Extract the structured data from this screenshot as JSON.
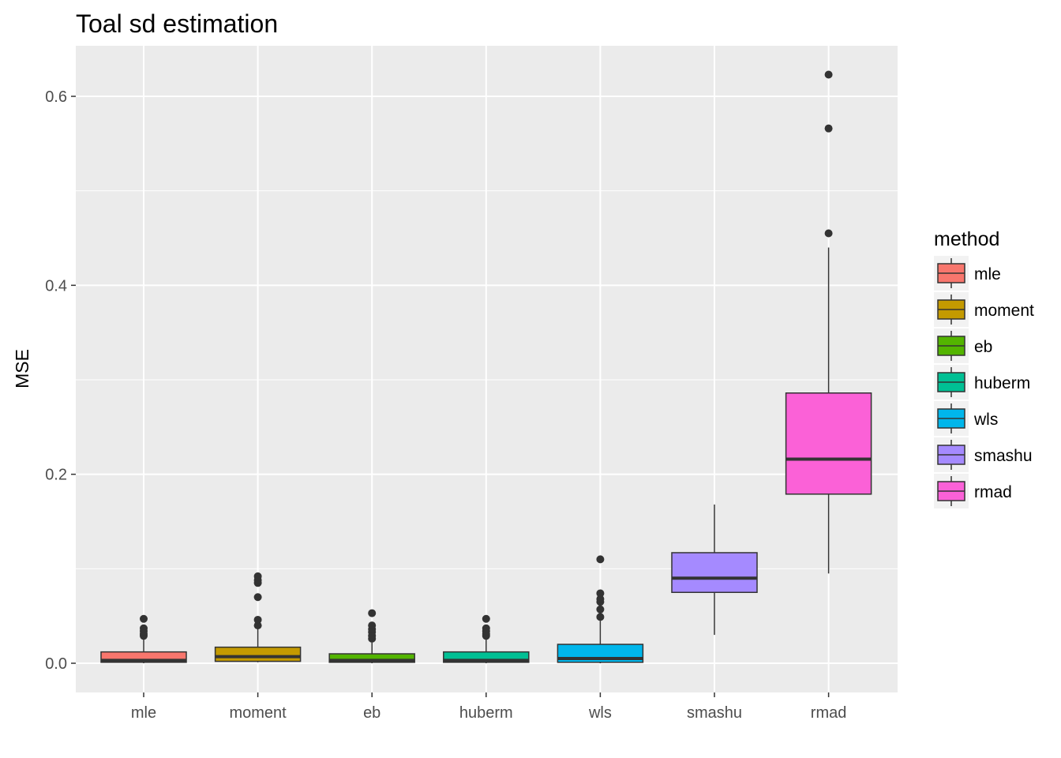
{
  "chart_data": {
    "type": "boxplot",
    "title": "Toal sd estimation",
    "xlabel": "",
    "ylabel": "MSE",
    "ylim": [
      -0.03,
      0.65
    ],
    "y_ticks": [
      0.0,
      0.2,
      0.4,
      0.6
    ],
    "y_tick_labels": [
      "0.0",
      "0.2",
      "0.4",
      "0.6"
    ],
    "grid": true,
    "legend": {
      "title": "method",
      "position": "right"
    },
    "categories": [
      "mle",
      "moment",
      "eb",
      "huberm",
      "wls",
      "smashu",
      "rmad"
    ],
    "series": [
      {
        "name": "mle",
        "color": "#F8766D",
        "min": 0.0,
        "q1": 0.001,
        "median": 0.003,
        "q3": 0.012,
        "max": 0.026,
        "outliers": [
          0.029,
          0.031,
          0.034,
          0.037,
          0.047
        ]
      },
      {
        "name": "moment",
        "color": "#C49A00",
        "min": 0.001,
        "q1": 0.002,
        "median": 0.007,
        "q3": 0.017,
        "max": 0.038,
        "outliers": [
          0.04,
          0.046,
          0.07,
          0.085,
          0.088,
          0.092
        ]
      },
      {
        "name": "eb",
        "color": "#53B400",
        "min": 0.0,
        "q1": 0.001,
        "median": 0.003,
        "q3": 0.01,
        "max": 0.022,
        "outliers": [
          0.026,
          0.029,
          0.033,
          0.036,
          0.04,
          0.053
        ]
      },
      {
        "name": "huberm",
        "color": "#00C094",
        "min": 0.0,
        "q1": 0.001,
        "median": 0.003,
        "q3": 0.012,
        "max": 0.026,
        "outliers": [
          0.029,
          0.031,
          0.034,
          0.037,
          0.047
        ]
      },
      {
        "name": "wls",
        "color": "#00B6EB",
        "min": 0.0,
        "q1": 0.001,
        "median": 0.005,
        "q3": 0.02,
        "max": 0.045,
        "outliers": [
          0.049,
          0.057,
          0.065,
          0.068,
          0.074,
          0.11
        ]
      },
      {
        "name": "smashu",
        "color": "#A58AFF",
        "min": 0.03,
        "q1": 0.075,
        "median": 0.09,
        "q3": 0.117,
        "max": 0.168,
        "outliers": []
      },
      {
        "name": "rmad",
        "color": "#FB61D7",
        "min": 0.095,
        "q1": 0.179,
        "median": 0.216,
        "q3": 0.286,
        "max": 0.44,
        "outliers": [
          0.455,
          0.566,
          0.623
        ]
      }
    ]
  }
}
